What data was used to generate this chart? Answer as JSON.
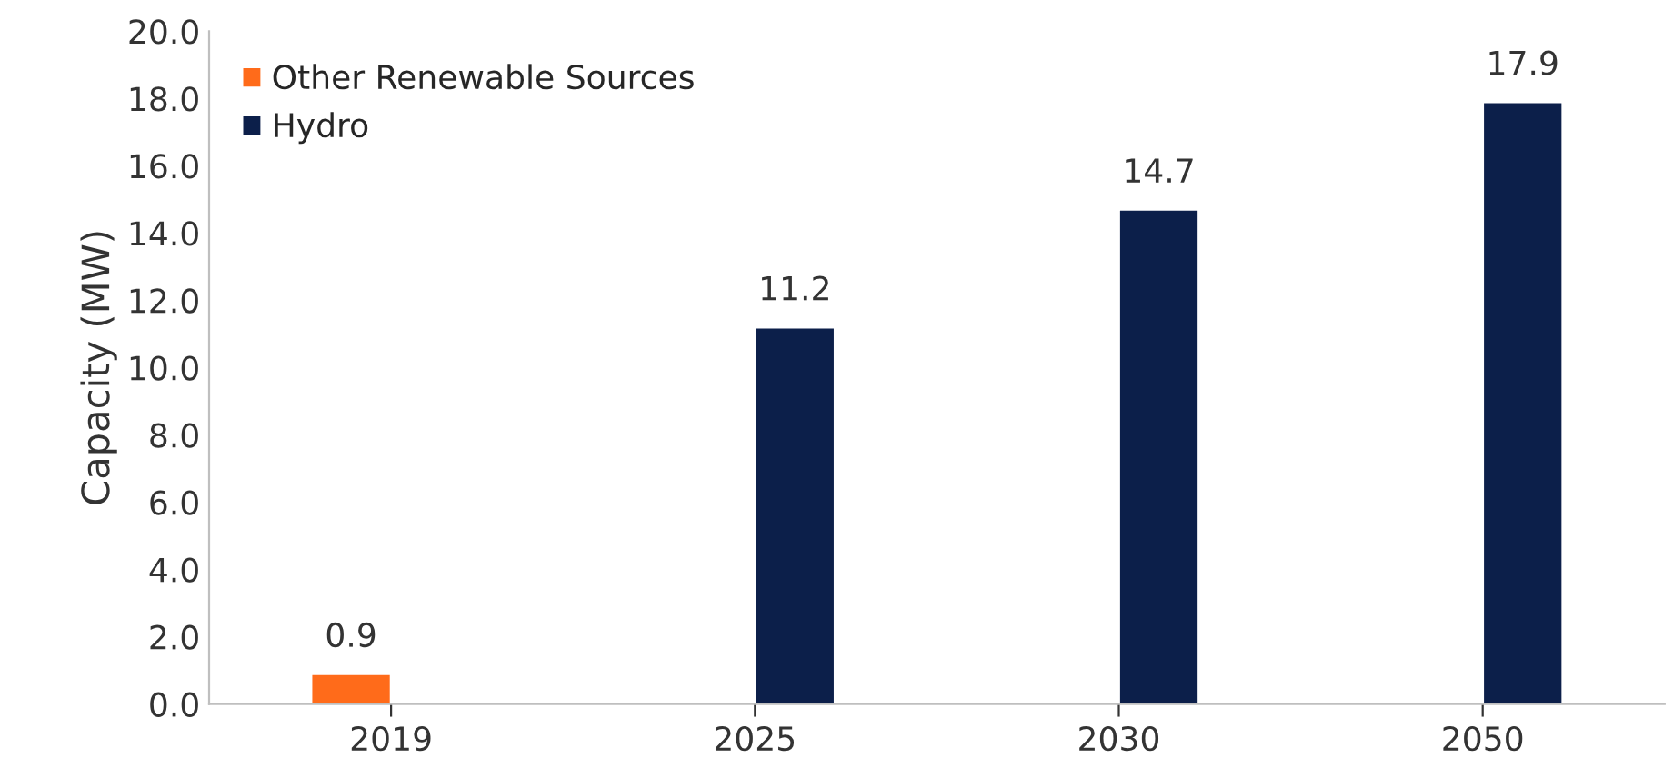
{
  "chart_data": {
    "type": "bar",
    "ylabel": "Capacity (MW)",
    "categories": [
      "2019",
      "2025",
      "2030",
      "2050"
    ],
    "series": [
      {
        "name": "Other Renewable Sources",
        "color": "#ff6b1a",
        "values": [
          0.9,
          null,
          null,
          null
        ]
      },
      {
        "name": "Hydro",
        "color": "#0c1f4a",
        "values": [
          null,
          11.2,
          14.7,
          17.9
        ]
      }
    ],
    "ylim": [
      0,
      20
    ],
    "yticks": [
      {
        "value": 0,
        "label": "0.0"
      },
      {
        "value": 2,
        "label": "2.0"
      },
      {
        "value": 4,
        "label": "4.0"
      },
      {
        "value": 6,
        "label": "6.0"
      },
      {
        "value": 8,
        "label": "8.0"
      },
      {
        "value": 10,
        "label": "10.0"
      },
      {
        "value": 12,
        "label": "12.0"
      },
      {
        "value": 14,
        "label": "14.0"
      },
      {
        "value": 16,
        "label": "16.0"
      },
      {
        "value": 18,
        "label": "18.0"
      },
      {
        "value": 20,
        "label": "20.0"
      }
    ],
    "data_labels": true,
    "grid": false,
    "legend": "top left"
  }
}
